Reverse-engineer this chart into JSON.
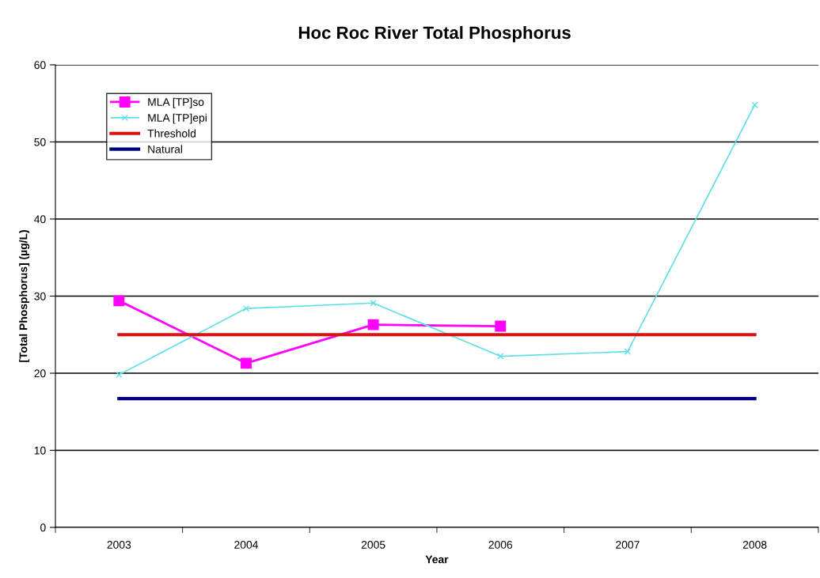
{
  "chart_data": {
    "type": "line",
    "title": "Hoc Roc River Total Phosphorus",
    "xlabel": "Year",
    "ylabel": "[Total Phosphorus] (µg/L)",
    "categories": [
      "2003",
      "2004",
      "2005",
      "2006",
      "2007",
      "2008"
    ],
    "series": [
      {
        "name": "MLA [TP]so",
        "color": "#ff00ff",
        "marker": "square",
        "values": [
          29.4,
          21.3,
          26.3,
          26.1,
          null,
          null
        ]
      },
      {
        "name": "MLA [TP]epi",
        "color": "#5ee0e6",
        "marker": "cross",
        "values": [
          19.8,
          28.4,
          29.1,
          22.2,
          22.8,
          54.8
        ]
      },
      {
        "name": "Threshold",
        "color": "#e01010",
        "marker": "none",
        "values": [
          25,
          25,
          25,
          25,
          25,
          25
        ]
      },
      {
        "name": "Natural",
        "color": "#000080",
        "marker": "none",
        "values": [
          16.7,
          16.7,
          16.7,
          16.7,
          16.7,
          16.7
        ]
      }
    ],
    "ylim": [
      0,
      60
    ],
    "yticks": [
      0,
      10,
      20,
      30,
      40,
      50,
      60
    ],
    "grid": "y",
    "legend": "top left"
  }
}
